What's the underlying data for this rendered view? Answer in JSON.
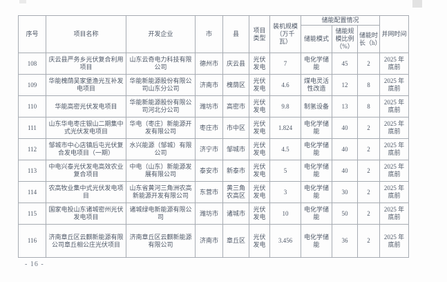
{
  "page": {
    "page_number": "- 16 -"
  },
  "table": {
    "group_header": "储能配置情况",
    "columns": [
      "序号",
      "项目名称",
      "开发企业",
      "市",
      "县",
      "项目类型",
      "装机规模（万千瓦）",
      "储能模式",
      "储能规模比例（%）",
      "储能时长（h）",
      "并网时间"
    ],
    "rows": [
      {
        "no": "108",
        "name": "庆云县严务乡光伏复合利用项目",
        "developer": "山东云奇电力科技有限公司",
        "city": "德州市",
        "county": "庆云县",
        "type": "光伏发电",
        "capacity": "7",
        "mode": "电化学储能",
        "ratio": "45",
        "duration": "2",
        "grid_time": "2025 年底前"
      },
      {
        "no": "109",
        "name": "华能槐荫吴家堡渔光互补发电项目",
        "developer": "华能新能源股份有限公司山东分公司",
        "city": "济南市",
        "county": "槐荫区",
        "type": "光伏发电",
        "capacity": "4.6",
        "mode": "煤电灵活性改造",
        "ratio": "12",
        "duration": "8",
        "grid_time": "2025 年底前"
      },
      {
        "no": "110",
        "name": "华能高密光伏发电项目",
        "developer": "华能新能源股份有限公司河北分公司",
        "city": "潍坊市",
        "county": "高密市",
        "type": "光伏发电",
        "capacity": "9.8",
        "mode": "制氢设备",
        "ratio": "13",
        "duration": "8",
        "grid_time": "2025 年底前"
      },
      {
        "no": "111",
        "name": "山东华电枣庄银山二期集中式光伏发电项目",
        "developer": "华电（枣庄）新能源开发有限公司",
        "city": "枣庄市",
        "county": "市中区",
        "type": "光伏发电",
        "capacity": "1.824",
        "mode": "电化学储能",
        "ratio": "40",
        "duration": "2",
        "grid_time": "2025 年底前"
      },
      {
        "no": "112",
        "name": "邹城市中心店镇后屯光伏复合发电项目（一期）",
        "developer": "水兴能源（邹城）有限公司",
        "city": "济宁市",
        "county": "邹城市",
        "type": "光伏发电",
        "capacity": "4.5",
        "mode": "电化学储能",
        "ratio": "40",
        "duration": "2",
        "grid_time": "2025 年底前"
      },
      {
        "no": "113",
        "name": "中电兴泰光伏发电高效农业复合项目",
        "developer": "中电（山东）新能源发展有限公司",
        "city": "泰安市",
        "county": "新泰市",
        "type": "光伏发电",
        "capacity": "5",
        "mode": "电化学储能",
        "ratio": "40",
        "duration": "2",
        "grid_time": "2025 年底前"
      },
      {
        "no": "114",
        "name": "农高牧业集中式光伏发电项目",
        "developer": "山东省黄河三角洲农高新能源开发有限公司",
        "city": "东营市",
        "county": "黄三角农高区",
        "type": "光伏发电",
        "capacity": "3",
        "mode": "电化学储能",
        "ratio": "30",
        "duration": "2",
        "grid_time": "2025 年底前"
      },
      {
        "no": "115",
        "name": "国家电投山东诸城密州光伏发电项目",
        "developer": "诸城绿电新能源有限公司",
        "city": "潍坊市",
        "county": "诸城市",
        "type": "光伏发电",
        "capacity": "10",
        "mode": "电化学储能",
        "ratio": "50",
        "duration": "2",
        "grid_time": "2025 年底前"
      },
      {
        "no": "116",
        "name": "济南章丘区云麒新能源有限公司章丘相公庄光伏项目",
        "developer": "济南章丘区云麒新能源有限公司",
        "city": "济南市",
        "county": "章丘区",
        "type": "光伏发电",
        "capacity": "3.456",
        "mode": "电化学储能",
        "ratio": "36",
        "duration": "2",
        "grid_time": "2025 年底前"
      }
    ]
  }
}
